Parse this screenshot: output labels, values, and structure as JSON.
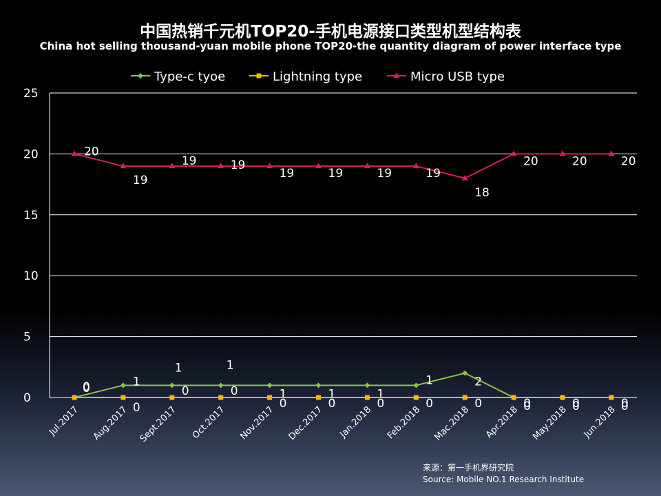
{
  "chart_data": {
    "type": "line",
    "title": "中国热销千元机TOP20-手机电源接口类型机型结构表",
    "subtitle": "China hot selling thousand-yuan mobile phone TOP20-the quantity diagram of power interface type",
    "categories": [
      "Jul.2017",
      "Aug.2017",
      "Sept.2017",
      "Oct.2017",
      "Nov.2017",
      "Dec.2017",
      "Jan.2018",
      "Feb.2018",
      "Mac.2018",
      "Apr.2018",
      "May.2018",
      "Jun.2018"
    ],
    "ylim": [
      0,
      25
    ],
    "yticks": [
      "0",
      "5",
      "10",
      "15",
      "20",
      "25"
    ],
    "grid": true,
    "legend_position": "top",
    "series": [
      {
        "name": "Type-c tyoe",
        "color": "#8bc34a",
        "marker": "diamond",
        "values": [
          0,
          1,
          1,
          1,
          1,
          1,
          1,
          1,
          2,
          0,
          0,
          0
        ]
      },
      {
        "name": "Lightning type",
        "color": "#f5b800",
        "marker": "square",
        "values": [
          0,
          0,
          0,
          0,
          0,
          0,
          0,
          0,
          0,
          0,
          0,
          0
        ]
      },
      {
        "name": "Micro USB type",
        "color": "#d81b60",
        "marker": "triangle",
        "values": [
          20,
          19,
          19,
          19,
          19,
          19,
          19,
          19,
          18,
          20,
          20,
          20
        ]
      }
    ]
  },
  "source": {
    "line1": "来源：第一手机界研究院",
    "line2": "Source: Mobile NO.1 Research Institute"
  }
}
